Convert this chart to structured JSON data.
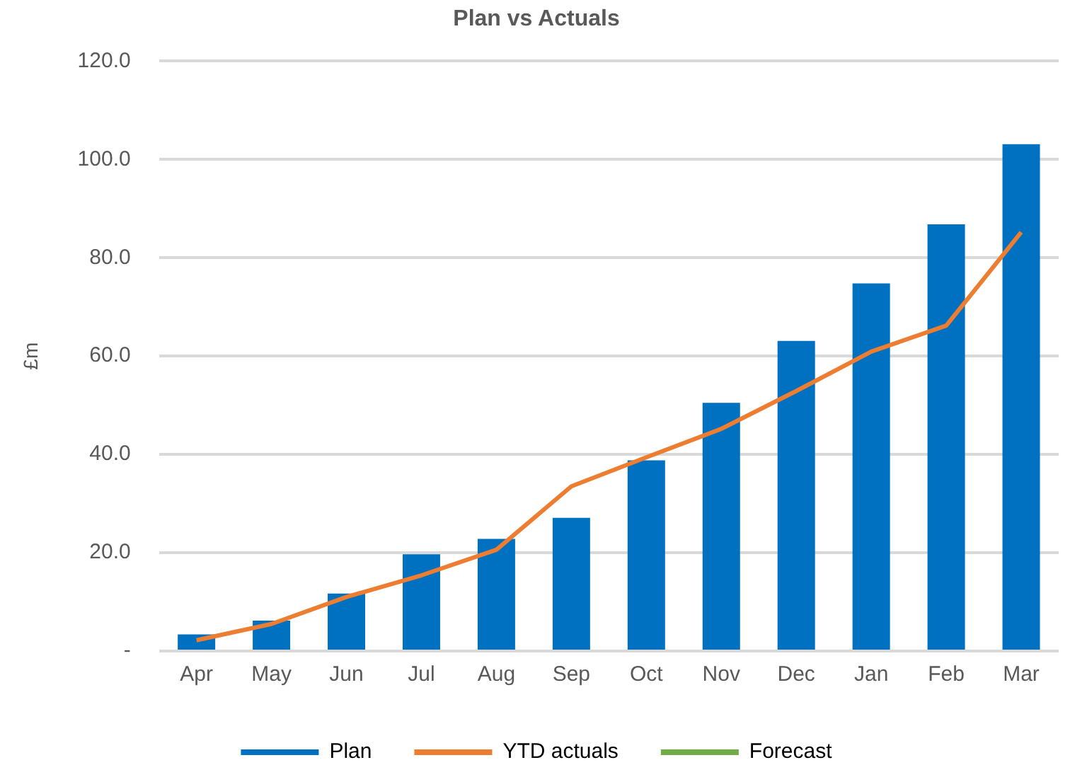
{
  "chart_data": {
    "type": "bar",
    "title": "Plan vs Actuals",
    "ylabel": "£m",
    "categories": [
      "Apr",
      "May",
      "Jun",
      "Jul",
      "Aug",
      "Sep",
      "Oct",
      "Nov",
      "Dec",
      "Jan",
      "Feb",
      "Mar"
    ],
    "series": [
      {
        "name": "Plan",
        "color": "#0070c0",
        "values": [
          3.4,
          6.2,
          11.7,
          19.7,
          22.8,
          27.1,
          38.8,
          50.5,
          63.1,
          74.8,
          86.8,
          103.1
        ]
      },
      {
        "name": "YTD actuals",
        "type": "line",
        "color": "#ed7d31",
        "values": [
          2.2,
          5.5,
          11.0,
          15.4,
          20.6,
          33.5,
          39.4,
          45.2,
          52.9,
          60.9,
          66.2,
          85.2
        ]
      },
      {
        "name": "Forecast",
        "type": "line",
        "color": "#70ad47",
        "values": [
          null,
          null,
          null,
          null,
          null,
          null,
          null,
          null,
          null,
          null,
          null,
          null
        ]
      }
    ],
    "ylim": [
      0,
      120
    ],
    "yticks": [
      {
        "value": 0,
        "label": "-"
      },
      {
        "value": 20,
        "label": "20.0"
      },
      {
        "value": 40,
        "label": "40.0"
      },
      {
        "value": 60,
        "label": "60.0"
      },
      {
        "value": 80,
        "label": "80.0"
      },
      {
        "value": 100,
        "label": "100.0"
      },
      {
        "value": 120,
        "label": "120.0"
      }
    ],
    "grid": "y",
    "legend": "bottom",
    "marker": "none",
    "line_style": "solid"
  }
}
